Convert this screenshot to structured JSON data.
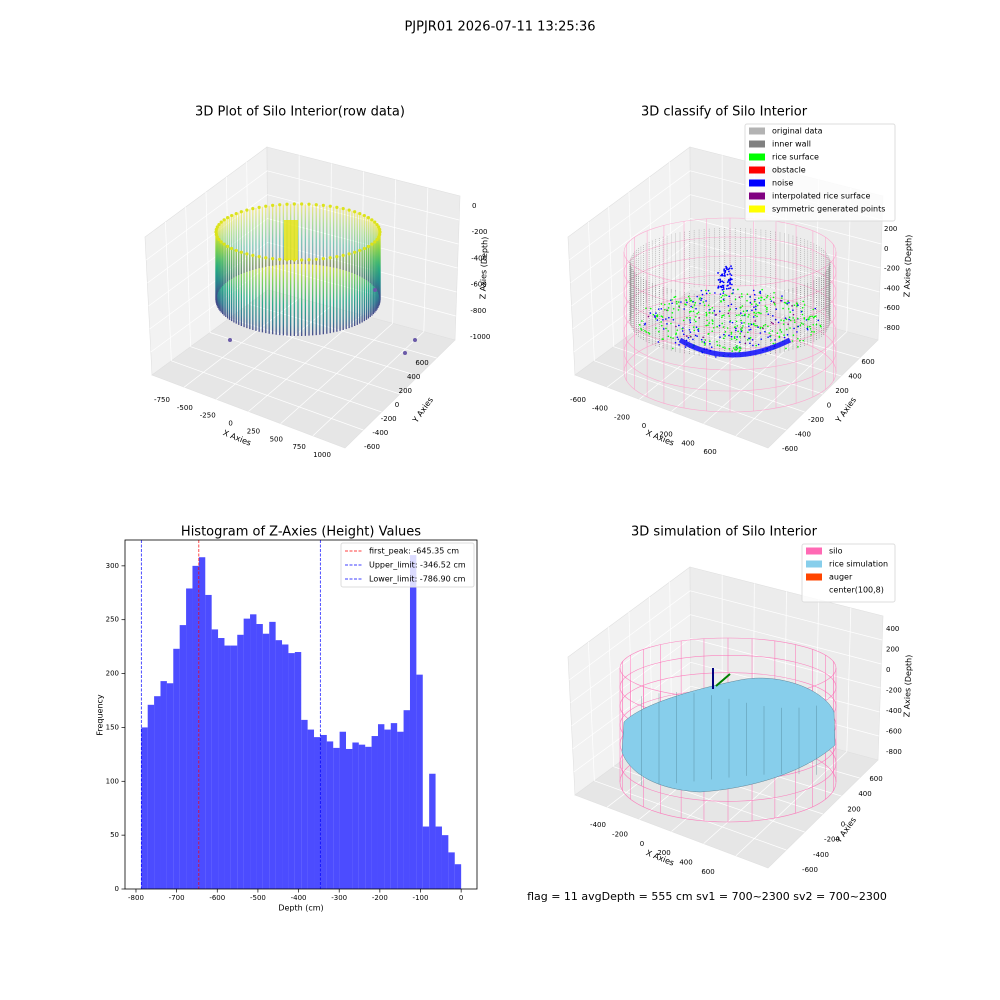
{
  "suptitle": "PJPJR01 2026-07-11 13:25:36",
  "footer": "flag = 11  avgDepth = 555 cm  sv1 = 700~2300  sv2 = 700~2300",
  "chart_data": [
    {
      "type": "scatter3d",
      "title": "3D Plot of Silo Interior(row data)",
      "xlabel": "X Axies",
      "ylabel": "Y Axies",
      "zlabel": "Z Axies (Depth)",
      "xticks": [
        -750,
        -500,
        -250,
        0,
        250,
        500,
        750,
        1000
      ],
      "yticks": [
        -600,
        -400,
        -200,
        0,
        200,
        400,
        600
      ],
      "zticks": [
        0,
        -200,
        -400,
        -600,
        -800,
        -1000
      ]
    },
    {
      "type": "scatter3d",
      "title": "3D classify of Silo Interior",
      "xlabel": "X Axies",
      "ylabel": "Y Axies",
      "zlabel": "Z Axies (Depth)",
      "xticks": [
        -600,
        -400,
        -200,
        0,
        200,
        400,
        600
      ],
      "yticks": [
        -600,
        -400,
        -200,
        0,
        200,
        400,
        600
      ],
      "zticks": [
        200,
        0,
        -200,
        -400,
        -600,
        -800
      ],
      "legend": [
        {
          "name": "original data",
          "color": "#b3b3b3"
        },
        {
          "name": "inner wall",
          "color": "#808080"
        },
        {
          "name": "rice surface",
          "color": "#00ff00"
        },
        {
          "name": "obstacle",
          "color": "#ff0000"
        },
        {
          "name": "noise",
          "color": "#0000ff"
        },
        {
          "name": "interpolated rice surface",
          "color": "#800080"
        },
        {
          "name": "symmetric generated points",
          "color": "#ffff00"
        }
      ]
    },
    {
      "type": "histogram",
      "title": "Histogram of Z-Axies (Height) Values",
      "xlabel": "Depth (cm)",
      "ylabel": "Frequency",
      "color": "#0000ff",
      "alpha": 0.7,
      "bins": [
        -786.9,
        -771.16,
        -755.42,
        -739.69,
        -723.95,
        -708.21,
        -692.47,
        -676.73,
        -661.0,
        -645.26,
        -629.52,
        -613.78,
        -598.04,
        -582.31,
        -566.57,
        -550.83,
        -535.09,
        -519.35,
        -503.62,
        -487.88,
        -472.14,
        -456.4,
        -440.66,
        -424.93,
        -409.19,
        -393.45,
        -377.71,
        -361.97,
        -346.24,
        -330.5,
        -314.76,
        -299.02,
        -283.28,
        -267.55,
        -251.81,
        -236.07,
        -220.33,
        -204.59,
        -188.86,
        -173.12,
        -157.38,
        -141.64,
        -125.9,
        -110.17,
        -94.43,
        -78.69,
        -62.95,
        -47.21,
        -31.48,
        -15.74,
        0
      ],
      "values": [
        150,
        171,
        179,
        193,
        191,
        223,
        245,
        279,
        300,
        308,
        273,
        241,
        233,
        226,
        226,
        236,
        251,
        255,
        246,
        237,
        248,
        231,
        227,
        219,
        220,
        157,
        148,
        141,
        143,
        137,
        131,
        146,
        130,
        136,
        134,
        132,
        142,
        153,
        148,
        154,
        146,
        166,
        310,
        199,
        58,
        107,
        58,
        50,
        34,
        23
      ],
      "xlim": [
        -827,
        39
      ],
      "ylim": [
        0,
        324
      ],
      "xticks": [
        -800,
        -700,
        -600,
        -500,
        -400,
        -300,
        -200,
        -100,
        0
      ],
      "yticks": [
        0,
        50,
        100,
        150,
        200,
        250,
        300
      ],
      "lines": [
        {
          "label": "first_peak: -645.35 cm",
          "value": -645.35,
          "color": "#ff0000"
        },
        {
          "label": "Upper_limit: -346.52 cm",
          "value": -346.52,
          "color": "#0000ff"
        },
        {
          "label": "Lower_limit: -786.90 cm",
          "value": -786.9,
          "color": "#0000ff"
        }
      ],
      "legend_loc": "upper right"
    },
    {
      "type": "surface3d",
      "title": "3D simulation of Silo Interior",
      "xlabel": "X Axies",
      "ylabel": "Y Axies",
      "zlabel": "Z Axies (Depth)",
      "xticks": [
        -400,
        -200,
        0,
        200,
        400,
        600
      ],
      "yticks": [
        -600,
        -400,
        -200,
        0,
        200,
        400,
        600
      ],
      "zticks": [
        400,
        200,
        0,
        -200,
        -400,
        -600,
        -800
      ],
      "legend": [
        {
          "name": "silo",
          "color": "#ff69b4"
        },
        {
          "name": "rice simulation",
          "color": "#87ceeb"
        },
        {
          "name": "auger",
          "color": "#ff4500"
        },
        {
          "name": "center(100,8)"
        }
      ]
    }
  ]
}
